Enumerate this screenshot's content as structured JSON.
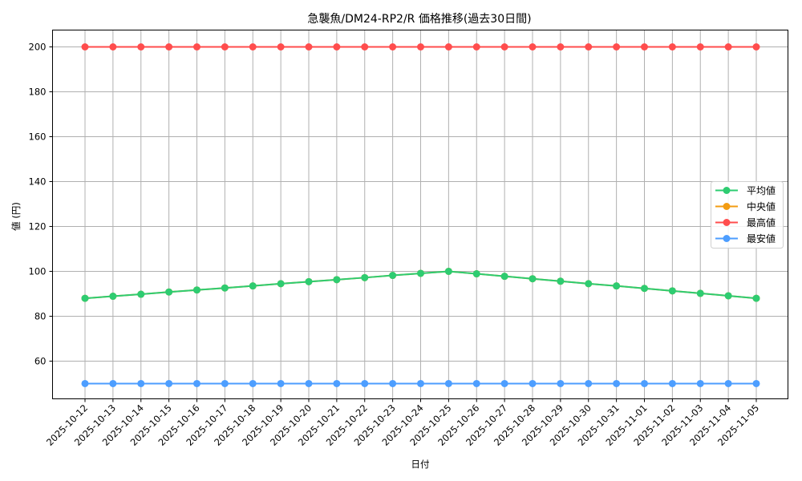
{
  "chart_data": {
    "type": "line",
    "title": "急襲魚/DM24-RP2/R 価格推移(過去30日間)",
    "xlabel": "日付",
    "ylabel": "値 (円)",
    "ylim": [
      43.2,
      207.5
    ],
    "yticks": [
      60,
      80,
      100,
      120,
      140,
      160,
      180,
      200
    ],
    "grid": true,
    "legend_position": "center right",
    "categories": [
      "2025-10-12",
      "2025-10-13",
      "2025-10-14",
      "2025-10-15",
      "2025-10-16",
      "2025-10-17",
      "2025-10-18",
      "2025-10-19",
      "2025-10-20",
      "2025-10-21",
      "2025-10-22",
      "2025-10-23",
      "2025-10-24",
      "2025-10-25",
      "2025-10-26",
      "2025-10-27",
      "2025-10-28",
      "2025-10-29",
      "2025-10-30",
      "2025-10-31",
      "2025-11-01",
      "2025-11-02",
      "2025-11-03",
      "2025-11-04",
      "2025-11-05"
    ],
    "series": [
      {
        "name": "平均値",
        "color": "#2ecc71",
        "values": [
          88.0,
          88.9,
          89.8,
          90.8,
          91.7,
          92.6,
          93.5,
          94.5,
          95.4,
          96.3,
          97.2,
          98.2,
          99.1,
          100.0,
          98.9,
          97.8,
          96.7,
          95.6,
          94.5,
          93.5,
          92.4,
          91.3,
          90.2,
          89.1,
          88.0
        ]
      },
      {
        "name": "中央値",
        "color": "#f39c12",
        "values": [
          88.0,
          88.9,
          89.8,
          90.8,
          91.7,
          92.6,
          93.5,
          94.5,
          95.4,
          96.3,
          97.2,
          98.2,
          99.1,
          100.0,
          98.9,
          97.8,
          96.7,
          95.6,
          94.5,
          93.5,
          92.4,
          91.3,
          90.2,
          89.1,
          88.0
        ]
      },
      {
        "name": "最高値",
        "color": "#ff4d4d",
        "values": [
          200,
          200,
          200,
          200,
          200,
          200,
          200,
          200,
          200,
          200,
          200,
          200,
          200,
          200,
          200,
          200,
          200,
          200,
          200,
          200,
          200,
          200,
          200,
          200,
          200
        ]
      },
      {
        "name": "最安値",
        "color": "#4d9eff",
        "values": [
          50,
          50,
          50,
          50,
          50,
          50,
          50,
          50,
          50,
          50,
          50,
          50,
          50,
          50,
          50,
          50,
          50,
          50,
          50,
          50,
          50,
          50,
          50,
          50,
          50
        ]
      }
    ]
  }
}
